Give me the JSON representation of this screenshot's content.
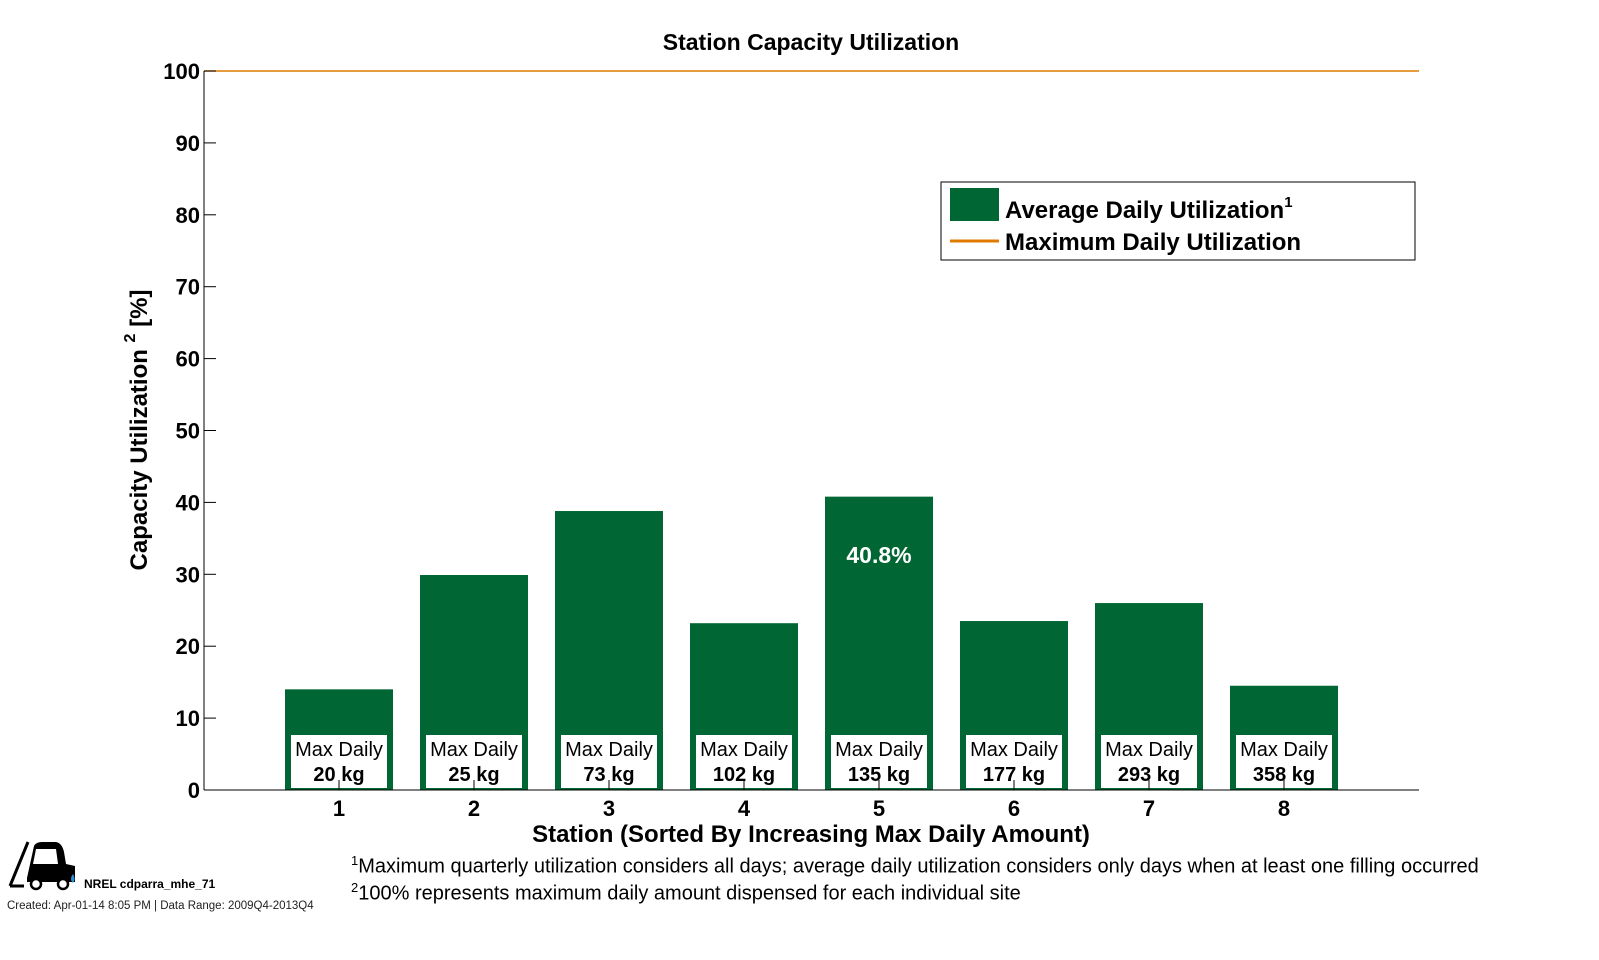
{
  "chart_data": {
    "type": "bar",
    "title": "Station Capacity Utilization",
    "xlabel": "Station (Sorted By Increasing Max Daily Amount)",
    "ylabel": "Capacity Utilization",
    "ylabel_sup": "2",
    "ylabel_unit": "[%]",
    "categories": [
      "1",
      "2",
      "3",
      "4",
      "5",
      "6",
      "7",
      "8"
    ],
    "xlim": [
      0,
      9
    ],
    "ylim": [
      0,
      100
    ],
    "yticks": [
      0,
      10,
      20,
      30,
      40,
      50,
      60,
      70,
      80,
      90,
      100
    ],
    "grid": false,
    "series": [
      {
        "name": "Average Daily Utilization",
        "name_sup": "1",
        "type": "bar",
        "color": "#006633",
        "values": [
          14.0,
          29.9,
          38.8,
          23.2,
          40.8,
          23.5,
          26.0,
          14.5
        ]
      },
      {
        "name": "Maximum Daily Utilization",
        "type": "line",
        "color": "#e07b00",
        "value": 100
      }
    ],
    "bar_labels": [
      [
        "Max Daily",
        "20 kg"
      ],
      [
        "Max Daily",
        "25 kg"
      ],
      [
        "Max Daily",
        "73 kg"
      ],
      [
        "Max Daily",
        "102 kg"
      ],
      [
        "Max Daily",
        "135 kg"
      ],
      [
        "Max Daily",
        "177 kg"
      ],
      [
        "Max Daily",
        "293 kg"
      ],
      [
        "Max Daily",
        "358 kg"
      ]
    ],
    "annotation": {
      "text": "40.8%",
      "category": "5"
    },
    "legend_position": "top-right"
  },
  "footer": {
    "id": "NREL cdparra_mhe_71",
    "created": "Created: Apr-01-14  8:05 PM | Data Range: 2009Q4-2013Q4",
    "note1_sup": "1",
    "note1": "Maximum quarterly utilization considers all days; average daily utilization considers only days when at least one filling occurred",
    "note2_sup": "2",
    "note2": "100% represents maximum daily amount dispensed for each individual site",
    "logo": "forklift-icon"
  }
}
